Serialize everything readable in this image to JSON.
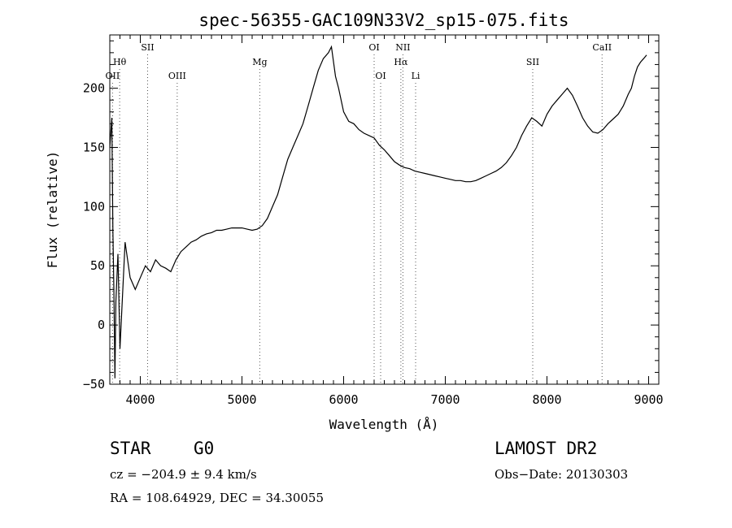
{
  "chart_data": {
    "type": "line",
    "title": "spec-56355-GAC109N33V2_sp15-075.fits",
    "xlabel": "Wavelength (Å)",
    "ylabel": "Flux (relative)",
    "xlim": [
      3700,
      9100
    ],
    "ylim": [
      -50,
      245
    ],
    "xticks": [
      4000,
      5000,
      6000,
      7000,
      8000,
      9000
    ],
    "yticks": [
      -50,
      0,
      50,
      100,
      150,
      200
    ],
    "grid": false,
    "line_color": "#000000",
    "marker_line_style": "dotted",
    "series": [
      {
        "x": [
          3700,
          3720,
          3730,
          3740,
          3750,
          3760,
          3780,
          3800,
          3850,
          3900,
          3950,
          4000,
          4050,
          4100,
          4150,
          4200,
          4250,
          4300,
          4350,
          4400,
          4450,
          4500,
          4550,
          4600,
          4650,
          4700,
          4750,
          4800,
          4850,
          4900,
          4950,
          5000,
          5050,
          5100,
          5150,
          5200,
          5250,
          5300,
          5350,
          5400,
          5450,
          5500,
          5550,
          5600,
          5650,
          5700,
          5750,
          5800,
          5850,
          5880,
          5920,
          5950,
          6000,
          6050,
          6100,
          6150,
          6200,
          6250,
          6300,
          6350,
          6400,
          6450,
          6500,
          6550,
          6600,
          6650,
          6700,
          6750,
          6800,
          6850,
          6900,
          6950,
          7000,
          7050,
          7100,
          7150,
          7200,
          7250,
          7300,
          7350,
          7400,
          7450,
          7500,
          7550,
          7600,
          7650,
          7700,
          7750,
          7800,
          7850,
          7900,
          7950,
          8000,
          8050,
          8100,
          8150,
          8200,
          8250,
          8300,
          8350,
          8400,
          8450,
          8500,
          8550,
          8600,
          8650,
          8700,
          8750,
          8800,
          8830,
          8860,
          8890,
          8920,
          8950,
          8980
        ],
        "y": [
          150,
          175,
          80,
          30,
          -45,
          20,
          60,
          -20,
          70,
          40,
          30,
          40,
          50,
          45,
          55,
          50,
          48,
          45,
          55,
          62,
          66,
          70,
          72,
          75,
          77,
          78,
          80,
          80,
          81,
          82,
          82,
          82,
          81,
          80,
          81,
          84,
          90,
          100,
          110,
          125,
          140,
          150,
          160,
          170,
          185,
          200,
          215,
          225,
          230,
          235,
          210,
          200,
          180,
          172,
          170,
          165,
          162,
          160,
          158,
          152,
          148,
          143,
          138,
          135,
          133,
          132,
          130,
          129,
          128,
          127,
          126,
          125,
          124,
          123,
          122,
          122,
          121,
          121,
          122,
          124,
          126,
          128,
          130,
          133,
          137,
          143,
          150,
          160,
          168,
          175,
          172,
          168,
          178,
          185,
          190,
          195,
          200,
          194,
          185,
          175,
          168,
          163,
          162,
          165,
          170,
          174,
          178,
          185,
          195,
          200,
          210,
          218,
          222,
          225,
          228
        ]
      }
    ],
    "lines": [
      {
        "label": "OII",
        "x": 3727,
        "row": 3
      },
      {
        "label": "Hθ",
        "x": 3797,
        "row": 2
      },
      {
        "label": "SII",
        "x": 4072,
        "row": 1
      },
      {
        "label": "OIII",
        "x": 4363,
        "row": 3
      },
      {
        "label": "Mg",
        "x": 5175,
        "row": 2
      },
      {
        "label": "OI",
        "x": 6300,
        "row": 1
      },
      {
        "label": "OI",
        "x": 6364,
        "row": 3
      },
      {
        "label": "Hα",
        "x": 6563,
        "row": 2
      },
      {
        "label": "NII",
        "x": 6583,
        "row": 1
      },
      {
        "label": "Li",
        "x": 6708,
        "row": 3
      },
      {
        "label": "SII",
        "x": 7860,
        "row": 2
      },
      {
        "label": "CaII",
        "x": 8542,
        "row": 1
      }
    ]
  },
  "footer": {
    "object_type": "STAR",
    "subclass": "G0",
    "survey": "LAMOST DR2",
    "redshift": "cz = −204.9 ± 9.4 km/s",
    "obs_date": "Obs−Date: 20130303",
    "coords": "RA = 108.64929, DEC =  34.30055"
  }
}
